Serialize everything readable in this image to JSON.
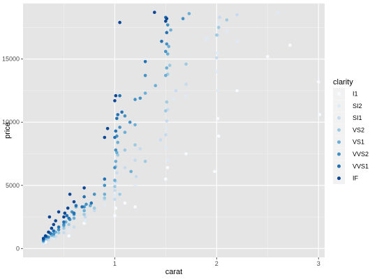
{
  "chart_data": {
    "type": "scatter",
    "xlabel": "carat",
    "ylabel": "price",
    "xlim": [
      0.1,
      3.06
    ],
    "ylim": [
      -700,
      19400
    ],
    "x_ticks": [
      1,
      2,
      3
    ],
    "x_tick_labels": [
      "1",
      "2",
      "3"
    ],
    "y_ticks": [
      0,
      5000,
      10000,
      15000
    ],
    "y_tick_labels": [
      "0",
      "5000",
      "10000",
      "15000"
    ],
    "grid": true,
    "panel_background": "#e5e5e5",
    "legend": {
      "title": "clarity",
      "placement": "right",
      "entries": [
        "I1",
        "SI2",
        "SI1",
        "VS2",
        "VS1",
        "VVS2",
        "VVS1",
        "IF"
      ],
      "colors": [
        "#f7fbff",
        "#deebf7",
        "#c6dbef",
        "#9ecae1",
        "#6baed6",
        "#4292c6",
        "#2171b5",
        "#084594"
      ]
    },
    "series": [
      {
        "values": [
          [
            0.32,
            500
          ],
          [
            0.55,
            1000
          ],
          [
            0.7,
            2000
          ],
          [
            1.01,
            3200
          ],
          [
            1.1,
            3600
          ],
          [
            1.5,
            5500
          ],
          [
            1.52,
            6400
          ],
          [
            1.7,
            7500
          ],
          [
            1.98,
            6100
          ],
          [
            2.02,
            8900
          ],
          [
            2.01,
            10300
          ],
          [
            2.2,
            12500
          ],
          [
            2.5,
            15200
          ],
          [
            2.72,
            16100
          ],
          [
            3.01,
            10600
          ],
          [
            3.0,
            13200
          ],
          [
            1.0,
            2600
          ],
          [
            1.2,
            3300
          ]
        ]
      },
      {
        "values": [
          [
            0.3,
            420
          ],
          [
            0.4,
            800
          ],
          [
            0.55,
            1500
          ],
          [
            0.71,
            2200
          ],
          [
            0.9,
            3400
          ],
          [
            1.0,
            4200
          ],
          [
            1.01,
            5100
          ],
          [
            1.05,
            4400
          ],
          [
            1.2,
            5000
          ],
          [
            1.5,
            8000
          ],
          [
            1.51,
            9500
          ],
          [
            1.52,
            7000
          ],
          [
            1.7,
            12100
          ],
          [
            2.0,
            14000
          ],
          [
            2.01,
            15500
          ],
          [
            2.02,
            17800
          ],
          [
            2.1,
            17200
          ],
          [
            2.2,
            16400
          ],
          [
            2.6,
            18700
          ],
          [
            2.01,
            12500
          ],
          [
            1.58,
            11800
          ],
          [
            1.9,
            16600
          ]
        ]
      },
      {
        "values": [
          [
            0.3,
            520
          ],
          [
            0.35,
            700
          ],
          [
            0.42,
            950
          ],
          [
            0.5,
            1250
          ],
          [
            0.6,
            1700
          ],
          [
            0.71,
            2500
          ],
          [
            0.8,
            3000
          ],
          [
            0.9,
            3900
          ],
          [
            1.0,
            4600
          ],
          [
            1.01,
            5300
          ],
          [
            1.02,
            6000
          ],
          [
            1.1,
            6400
          ],
          [
            1.2,
            7000
          ],
          [
            1.25,
            7900
          ],
          [
            1.5,
            9000
          ],
          [
            1.51,
            10100
          ],
          [
            1.52,
            11000
          ],
          [
            1.6,
            12500
          ],
          [
            1.7,
            13000
          ],
          [
            2.0,
            15100
          ],
          [
            2.01,
            16900
          ],
          [
            2.03,
            18300
          ],
          [
            2.2,
            18500
          ],
          [
            1.0,
            3900
          ],
          [
            1.21,
            5700
          ],
          [
            1.45,
            8600
          ]
        ]
      },
      {
        "values": [
          [
            0.3,
            560
          ],
          [
            0.33,
            760
          ],
          [
            0.4,
            1000
          ],
          [
            0.45,
            1250
          ],
          [
            0.5,
            1600
          ],
          [
            0.55,
            1900
          ],
          [
            0.7,
            2700
          ],
          [
            0.8,
            3200
          ],
          [
            0.9,
            4000
          ],
          [
            1.0,
            4900
          ],
          [
            1.01,
            6500
          ],
          [
            1.03,
            7400
          ],
          [
            1.1,
            7800
          ],
          [
            1.2,
            8200
          ],
          [
            1.5,
            10900
          ],
          [
            1.51,
            11600
          ],
          [
            1.52,
            13800
          ],
          [
            1.54,
            14500
          ],
          [
            1.7,
            14600
          ],
          [
            2.0,
            16900
          ],
          [
            2.02,
            17500
          ],
          [
            2.1,
            18100
          ],
          [
            1.05,
            4300
          ],
          [
            1.3,
            6900
          ]
        ]
      },
      {
        "values": [
          [
            0.3,
            600
          ],
          [
            0.32,
            820
          ],
          [
            0.38,
            1050
          ],
          [
            0.42,
            1300
          ],
          [
            0.5,
            1800
          ],
          [
            0.52,
            2100
          ],
          [
            0.6,
            2400
          ],
          [
            0.7,
            3000
          ],
          [
            0.76,
            3400
          ],
          [
            0.9,
            4300
          ],
          [
            1.0,
            5400
          ],
          [
            1.01,
            6900
          ],
          [
            1.02,
            7600
          ],
          [
            1.03,
            8400
          ],
          [
            1.1,
            9200
          ],
          [
            1.2,
            9800
          ],
          [
            1.3,
            12300
          ],
          [
            1.4,
            12900
          ],
          [
            1.5,
            13700
          ],
          [
            1.51,
            14300
          ],
          [
            1.52,
            15400
          ],
          [
            1.53,
            16000
          ],
          [
            1.55,
            17300
          ],
          [
            1.73,
            18600
          ],
          [
            0.62,
            3300
          ],
          [
            1.16,
            6100
          ]
        ]
      },
      {
        "values": [
          [
            0.3,
            650
          ],
          [
            0.35,
            900
          ],
          [
            0.4,
            1150
          ],
          [
            0.45,
            1500
          ],
          [
            0.5,
            1900
          ],
          [
            0.56,
            2300
          ],
          [
            0.6,
            2700
          ],
          [
            0.7,
            3300
          ],
          [
            0.72,
            3500
          ],
          [
            0.8,
            4300
          ],
          [
            0.9,
            5000
          ],
          [
            1.0,
            6400
          ],
          [
            1.01,
            7800
          ],
          [
            1.02,
            8900
          ],
          [
            1.05,
            9600
          ],
          [
            1.1,
            10500
          ],
          [
            1.15,
            10000
          ],
          [
            1.2,
            11800
          ],
          [
            1.3,
            13700
          ],
          [
            1.5,
            15600
          ],
          [
            1.51,
            16200
          ],
          [
            1.52,
            17700
          ],
          [
            1.67,
            18200
          ],
          [
            0.58,
            2900
          ],
          [
            1.25,
            11900
          ]
        ]
      },
      {
        "values": [
          [
            0.3,
            700
          ],
          [
            0.33,
            950
          ],
          [
            0.37,
            1200
          ],
          [
            0.4,
            1400
          ],
          [
            0.45,
            1700
          ],
          [
            0.5,
            2100
          ],
          [
            0.55,
            2400
          ],
          [
            0.6,
            2800
          ],
          [
            0.62,
            3400
          ],
          [
            0.7,
            4100
          ],
          [
            0.77,
            3600
          ],
          [
            0.9,
            5500
          ],
          [
            1.0,
            8800
          ],
          [
            1.01,
            9300
          ],
          [
            1.02,
            10300
          ],
          [
            1.03,
            10600
          ],
          [
            1.05,
            12100
          ],
          [
            1.07,
            10800
          ],
          [
            1.3,
            14800
          ],
          [
            1.5,
            18300
          ],
          [
            1.51,
            17100
          ],
          [
            1.46,
            16400
          ],
          [
            0.53,
            2600
          ],
          [
            0.68,
            3300
          ]
        ]
      },
      {
        "values": [
          [
            0.3,
            800
          ],
          [
            0.32,
            1000
          ],
          [
            0.35,
            1300
          ],
          [
            0.38,
            1600
          ],
          [
            0.4,
            1900
          ],
          [
            0.42,
            2200
          ],
          [
            0.5,
            2500
          ],
          [
            0.51,
            2800
          ],
          [
            0.54,
            3200
          ],
          [
            0.6,
            3700
          ],
          [
            0.7,
            4800
          ],
          [
            0.9,
            8800
          ],
          [
            0.93,
            9500
          ],
          [
            1.0,
            11700
          ],
          [
            1.01,
            12100
          ],
          [
            1.05,
            17900
          ],
          [
            1.5,
            18000
          ],
          [
            1.39,
            18700
          ],
          [
            1.51,
            18200
          ],
          [
            0.36,
            2500
          ],
          [
            0.45,
            2900
          ],
          [
            0.56,
            4300
          ]
        ]
      }
    ]
  }
}
